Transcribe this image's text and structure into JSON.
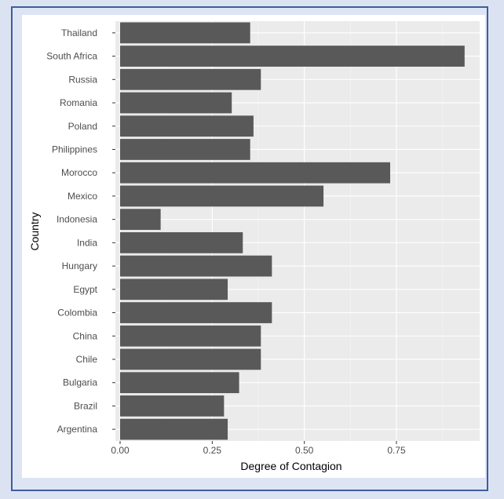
{
  "chart_data": {
    "type": "bar",
    "orientation": "horizontal",
    "xlabel": "Degree of Contagion",
    "ylabel": "Country",
    "xlim": [
      0,
      0.97
    ],
    "xticks": [
      "0.00",
      "0.25",
      "0.50",
      "0.75"
    ],
    "grid": true,
    "bar_color": "#595959",
    "panel_color": "#ebebeb",
    "categories": [
      "Thailand",
      "South Africa",
      "Russia",
      "Romania",
      "Poland",
      "Philippines",
      "Morocco",
      "Mexico",
      "Indonesia",
      "India",
      "Hungary",
      "Egypt",
      "Colombia",
      "China",
      "Chile",
      "Bulgaria",
      "Brazil",
      "Argentina"
    ],
    "values": [
      0.353,
      0.935,
      0.382,
      0.303,
      0.362,
      0.353,
      0.733,
      0.552,
      0.11,
      0.333,
      0.412,
      0.292,
      0.412,
      0.382,
      0.382,
      0.323,
      0.282,
      0.292
    ]
  }
}
